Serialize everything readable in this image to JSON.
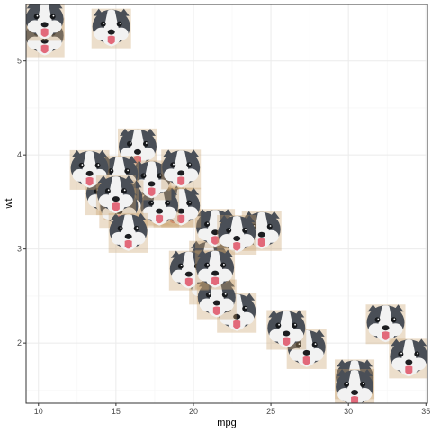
{
  "chart_data": {
    "type": "scatter",
    "xlabel": "mpg",
    "ylabel": "wt",
    "xlim": [
      9.2,
      35.1
    ],
    "ylim": [
      1.36,
      5.6
    ],
    "x_ticks": [
      "10",
      "15",
      "20",
      "25",
      "30",
      "35"
    ],
    "y_ticks": [
      "2",
      "3",
      "4",
      "5"
    ],
    "x_tick_values": [
      10,
      15,
      20,
      25,
      30,
      35
    ],
    "y_tick_values": [
      2,
      3,
      4,
      5
    ],
    "marker": "dog-face-image",
    "grid": true,
    "points": [
      {
        "x": 21.0,
        "y": 2.62
      },
      {
        "x": 21.0,
        "y": 2.875
      },
      {
        "x": 22.8,
        "y": 2.32
      },
      {
        "x": 21.4,
        "y": 3.215
      },
      {
        "x": 18.7,
        "y": 3.44
      },
      {
        "x": 18.1,
        "y": 3.46
      },
      {
        "x": 14.3,
        "y": 3.57
      },
      {
        "x": 24.4,
        "y": 3.19
      },
      {
        "x": 22.8,
        "y": 3.15
      },
      {
        "x": 19.2,
        "y": 3.44
      },
      {
        "x": 17.8,
        "y": 3.44
      },
      {
        "x": 16.4,
        "y": 4.07
      },
      {
        "x": 17.3,
        "y": 3.73
      },
      {
        "x": 15.2,
        "y": 3.78
      },
      {
        "x": 10.4,
        "y": 5.25
      },
      {
        "x": 10.4,
        "y": 5.424
      },
      {
        "x": 14.7,
        "y": 5.345
      },
      {
        "x": 32.4,
        "y": 2.2
      },
      {
        "x": 30.4,
        "y": 1.615
      },
      {
        "x": 33.9,
        "y": 1.835
      },
      {
        "x": 21.5,
        "y": 2.465
      },
      {
        "x": 15.5,
        "y": 3.52
      },
      {
        "x": 15.2,
        "y": 3.435
      },
      {
        "x": 13.3,
        "y": 3.84
      },
      {
        "x": 19.2,
        "y": 3.845
      },
      {
        "x": 27.3,
        "y": 1.935
      },
      {
        "x": 26.0,
        "y": 2.14
      },
      {
        "x": 30.4,
        "y": 1.513
      },
      {
        "x": 15.8,
        "y": 3.17
      },
      {
        "x": 19.7,
        "y": 2.77
      },
      {
        "x": 15.0,
        "y": 3.57
      },
      {
        "x": 21.4,
        "y": 2.78
      }
    ]
  },
  "colors": {
    "panel_border": "#333333",
    "grid_major": "#ebebeb",
    "grid_minor": "#f5f5f5",
    "fur_dark": "#4a4f57",
    "fur_light": "#f2f2f2",
    "tongue": "#e2697a",
    "background_tile": "#c9a06a"
  }
}
